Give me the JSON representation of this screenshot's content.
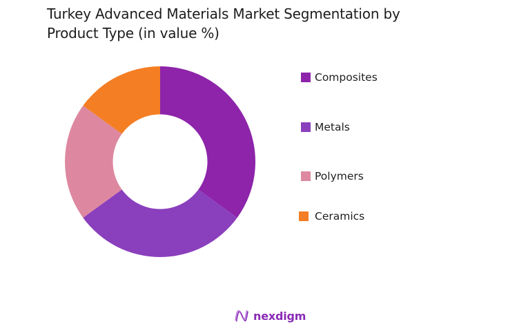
{
  "title": {
    "line1": "Turkey Advanced Materials Market Segmentation by",
    "line2": "Product Type (in value %)"
  },
  "chart_data": {
    "type": "pie",
    "subtype": "donut",
    "title": "Turkey Advanced Materials Market Segmentation by Product Type (in value %)",
    "categories": [
      "Composites",
      "Metals",
      "Polymers",
      "Ceramics"
    ],
    "values": [
      35,
      30,
      20,
      15
    ],
    "unit": "%",
    "colors": [
      "#8d24aa",
      "#8a3fbc",
      "#dd88a0",
      "#f47e23"
    ],
    "start_angle": "12 o'clock, clockwise",
    "legend_position": "right",
    "data_labels": false
  },
  "legend": {
    "items": [
      {
        "label": "Composites",
        "color": "#8d24aa"
      },
      {
        "label": "Metals",
        "color": "#8a3fbc"
      },
      {
        "label": "Polymers",
        "color": "#dd88a0"
      },
      {
        "label": "Ceramics",
        "color": "#f47e23"
      }
    ]
  },
  "brand": {
    "name": "nexdigm",
    "color": "#8a2bb5"
  }
}
